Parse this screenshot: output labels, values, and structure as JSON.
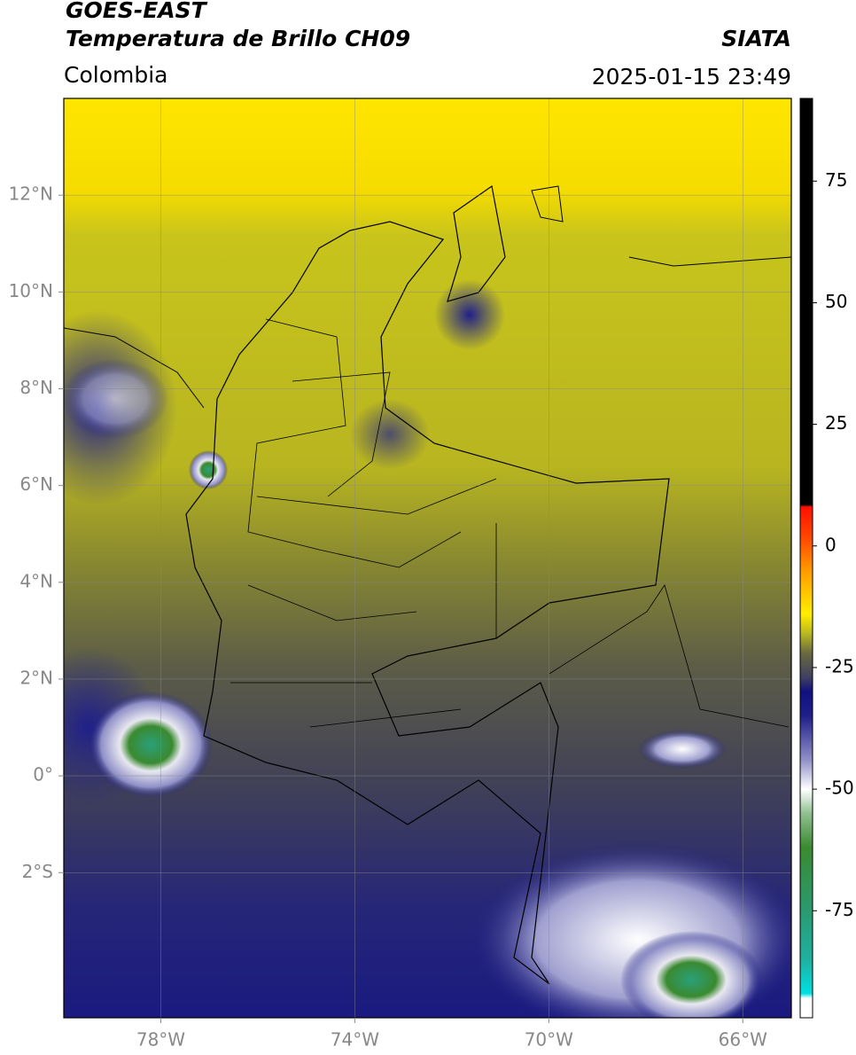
{
  "header": {
    "title_line1": "GOES-EAST",
    "title_line2": "Temperatura de Brillo CH09",
    "source": "SIATA",
    "region": "Colombia",
    "timestamp": "2025-01-15 23:49"
  },
  "map": {
    "xlim": [
      -80,
      -65
    ],
    "ylim": [
      -5,
      14
    ],
    "xticks": [
      {
        "value": -78,
        "label": "78°W"
      },
      {
        "value": -74,
        "label": "74°W"
      },
      {
        "value": -70,
        "label": "70°W"
      },
      {
        "value": -66,
        "label": "66°W"
      }
    ],
    "yticks": [
      {
        "value": 12,
        "label": "12°N"
      },
      {
        "value": 10,
        "label": "10°N"
      },
      {
        "value": 8,
        "label": "8°N"
      },
      {
        "value": 6,
        "label": "6°N"
      },
      {
        "value": 4,
        "label": "4°N"
      },
      {
        "value": 2,
        "label": "2°N"
      },
      {
        "value": 0,
        "label": "0°"
      },
      {
        "value": -2,
        "label": "2°S"
      }
    ],
    "grid": true
  },
  "colorbar": {
    "lim": [
      -97,
      92
    ],
    "ticks": [
      75,
      50,
      25,
      0,
      -25,
      -50,
      -75
    ],
    "colormap": [
      {
        "value": -97,
        "color": "#ffffff"
      },
      {
        "value": -93,
        "color": "#ffffff"
      },
      {
        "value": -92,
        "color": "#00e0e0"
      },
      {
        "value": -85,
        "color": "#20b0a0"
      },
      {
        "value": -75,
        "color": "#2a9a70"
      },
      {
        "value": -62,
        "color": "#3a8a30"
      },
      {
        "value": -55,
        "color": "#90c090"
      },
      {
        "value": -50,
        "color": "#ffffff"
      },
      {
        "value": -44,
        "color": "#9090c8"
      },
      {
        "value": -35,
        "color": "#20208a"
      },
      {
        "value": -30,
        "color": "#101080"
      },
      {
        "value": -27,
        "color": "#404060"
      },
      {
        "value": -22,
        "color": "#6a6a40"
      },
      {
        "value": -18,
        "color": "#b8b820"
      },
      {
        "value": -14,
        "color": "#ffee00"
      },
      {
        "value": -5,
        "color": "#ff9900"
      },
      {
        "value": 2,
        "color": "#ff4400"
      },
      {
        "value": 8,
        "color": "#ff1100"
      },
      {
        "value": 8.5,
        "color": "#000000"
      },
      {
        "value": 92,
        "color": "#000000"
      }
    ]
  }
}
